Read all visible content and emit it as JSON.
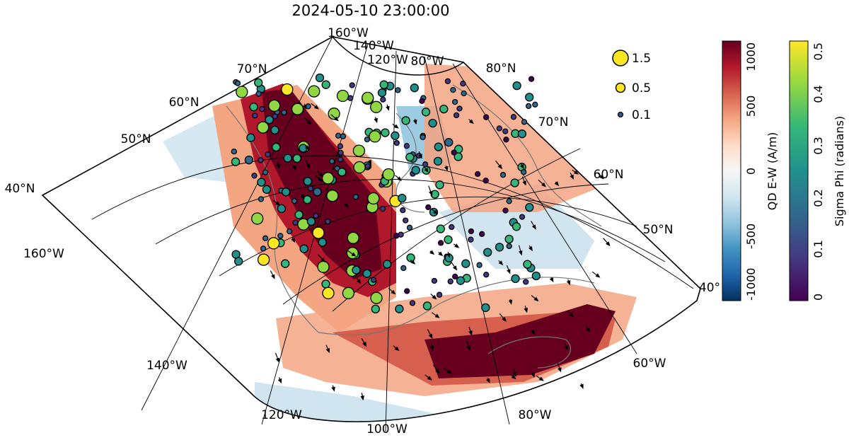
{
  "title": "2024-05-10 23:00:00",
  "map": {
    "lon_labels_top": [
      "160°W",
      "140°W",
      "120°W",
      "80°W"
    ],
    "lat_labels_left": [
      "70°N",
      "60°N",
      "50°N",
      "40°N"
    ],
    "lat_labels_right": [
      "80°N",
      "70°N",
      "60°N",
      "50°N",
      "40°"
    ],
    "lon_labels_left": [
      "160°W"
    ],
    "lon_labels_bottom": [
      "140°W",
      "120°W",
      "100°W",
      "80°W",
      "60°W"
    ]
  },
  "size_legend": {
    "entries": [
      {
        "label": "1.5",
        "value": 1.5
      },
      {
        "label": "0.5",
        "value": 0.5
      },
      {
        "label": "0.1",
        "value": 0.1
      }
    ]
  },
  "colorbar_qd": {
    "label": "QD E-W (A/m)",
    "colormap": "RdBu_r",
    "range": [
      -1000,
      1000
    ],
    "ticks": [
      "1000",
      "500",
      "0",
      "-500",
      "-1000"
    ],
    "colors": [
      "#67001f",
      "#b2182b",
      "#d6604d",
      "#f4a582",
      "#fddbc7",
      "#f7f7f7",
      "#d1e5f0",
      "#92c5de",
      "#4393c3",
      "#2166ac",
      "#053061"
    ]
  },
  "colorbar_sigma": {
    "label": "Sigma Phi (radians)",
    "colormap": "viridis",
    "range": [
      0,
      0.5
    ],
    "ticks": [
      "0.5",
      "0.4",
      "0.3",
      "0.2",
      "0.1",
      "0"
    ],
    "colors": [
      "#fde725",
      "#90d743",
      "#35b779",
      "#21908d",
      "#31688e",
      "#443a83",
      "#440154"
    ]
  }
}
